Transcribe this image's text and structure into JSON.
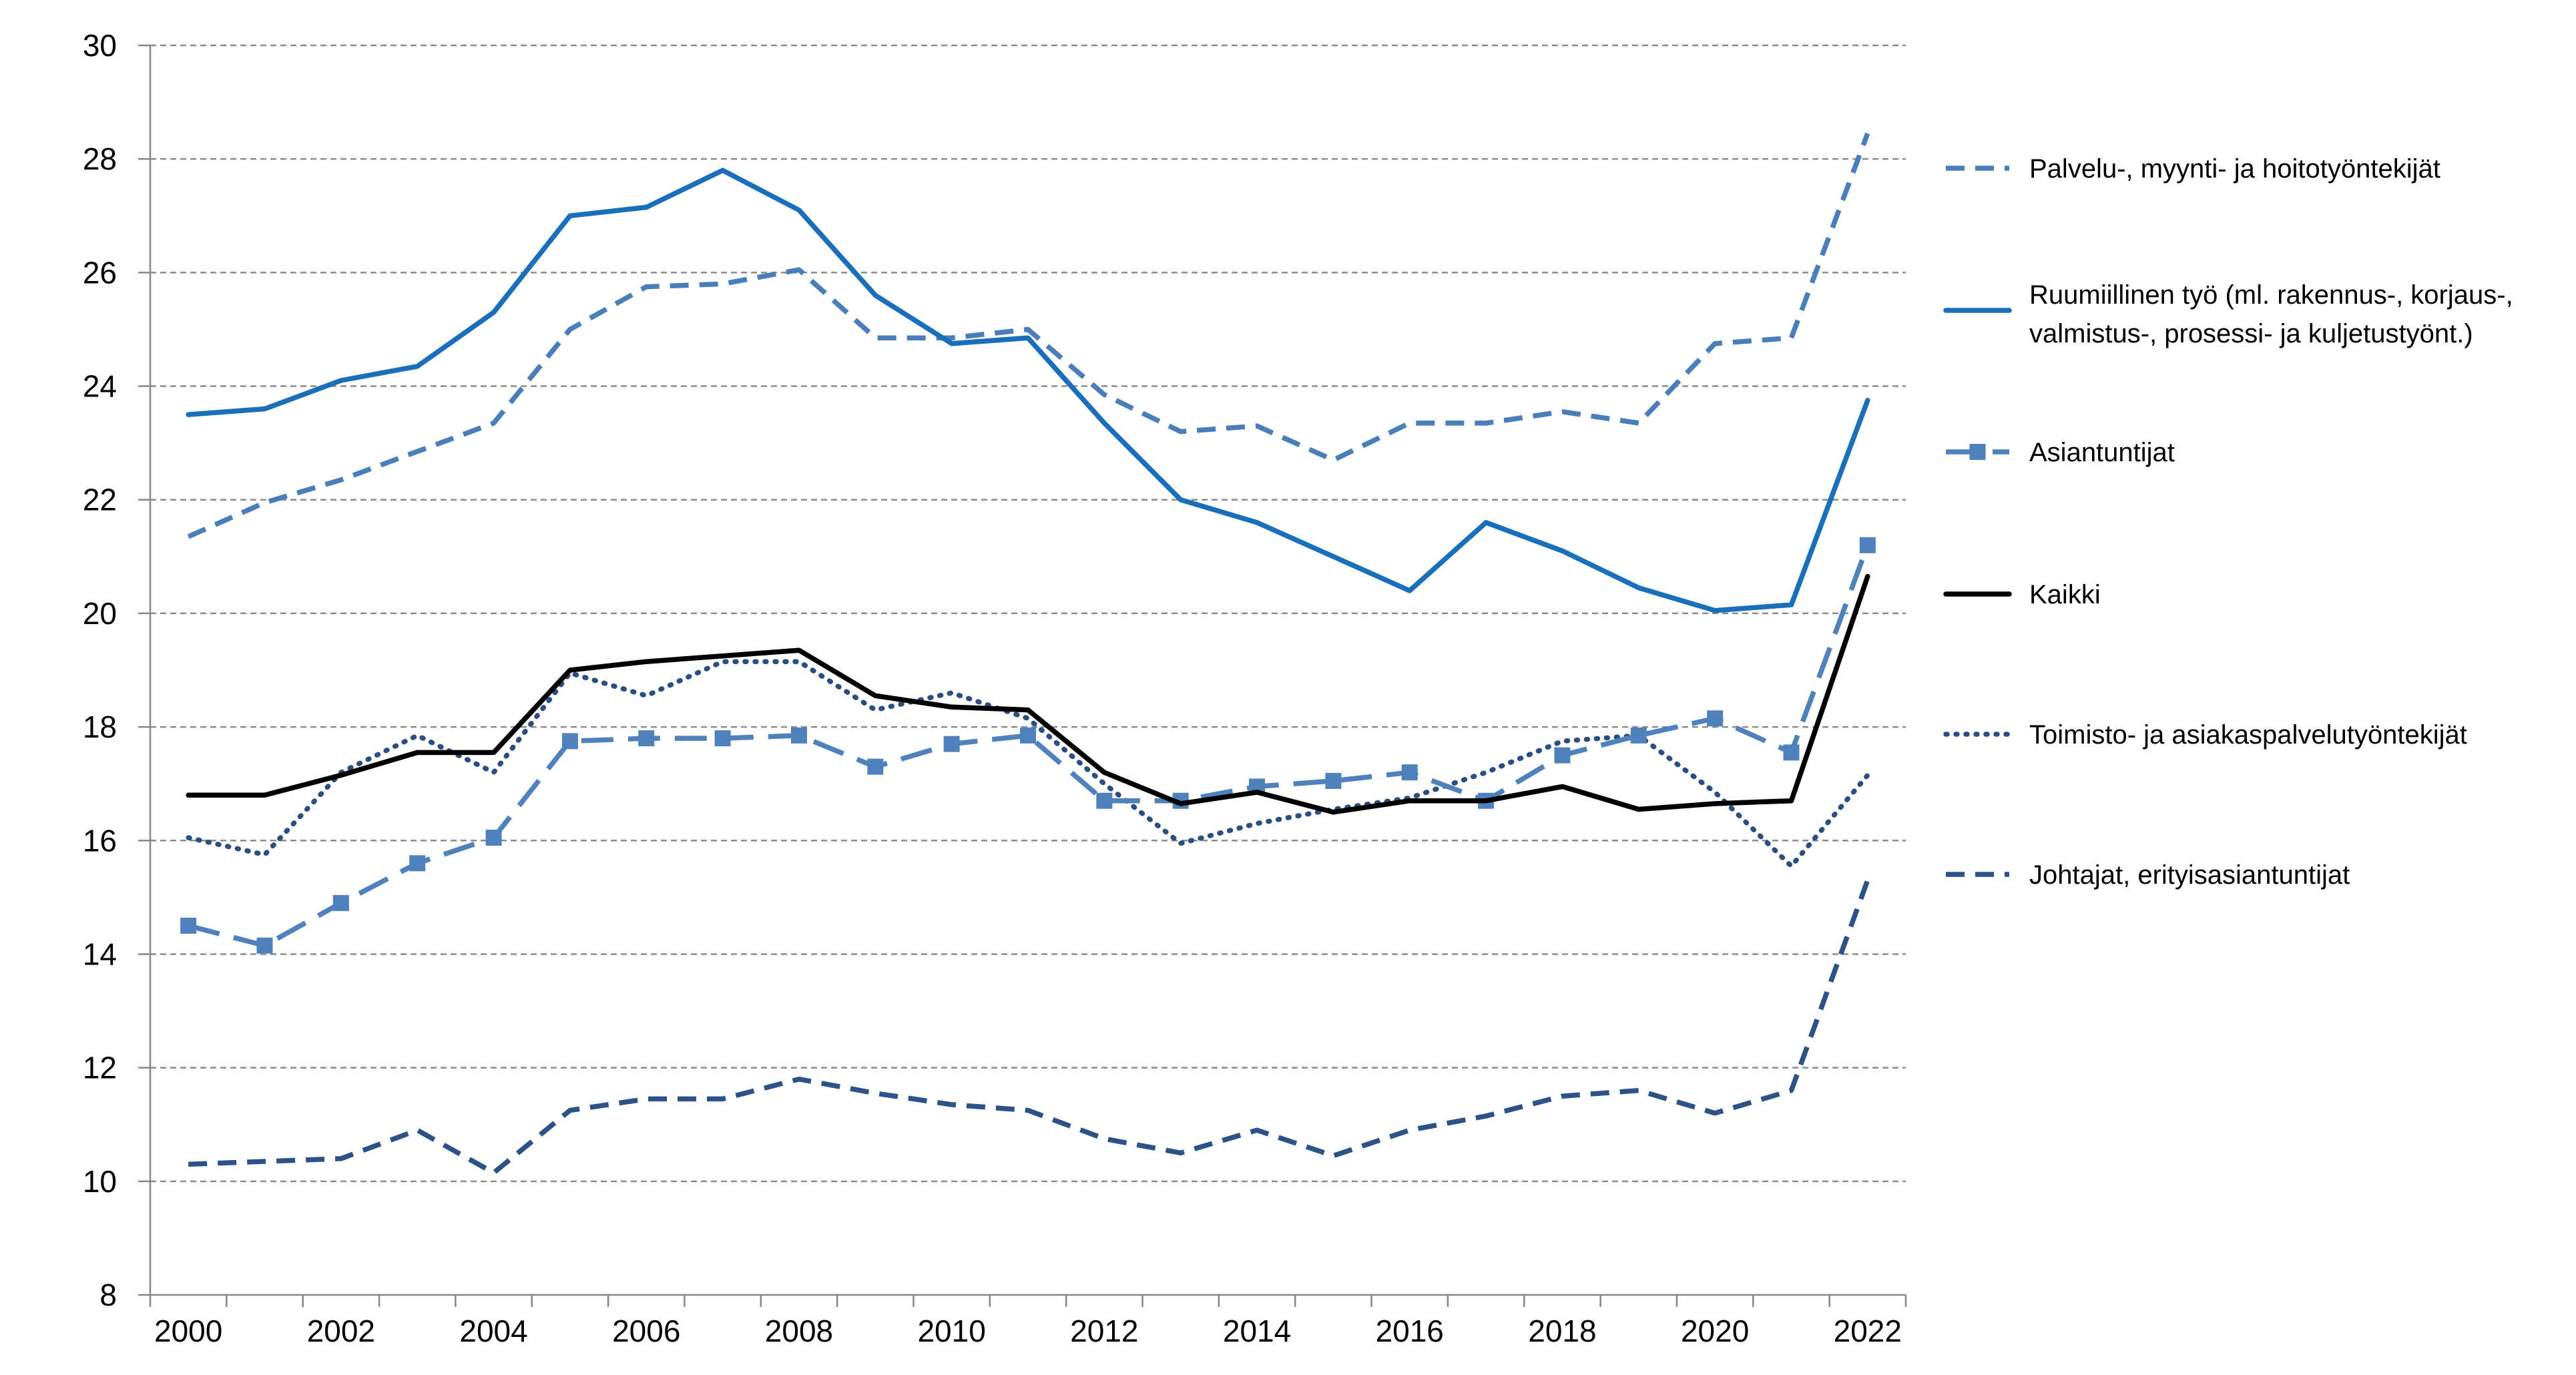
{
  "chart_data": {
    "type": "line",
    "title": "",
    "xlabel": "",
    "ylabel": "",
    "x": [
      2000,
      2001,
      2002,
      2003,
      2004,
      2005,
      2006,
      2007,
      2008,
      2009,
      2010,
      2011,
      2012,
      2013,
      2014,
      2015,
      2016,
      2017,
      2018,
      2019,
      2020,
      2021,
      2022
    ],
    "xlim": [
      1999.5,
      2022.5
    ],
    "ylim": [
      8,
      30
    ],
    "x_ticks": [
      2000,
      2002,
      2004,
      2006,
      2008,
      2010,
      2012,
      2014,
      2016,
      2018,
      2020,
      2022
    ],
    "y_ticks": [
      8,
      10,
      12,
      14,
      16,
      18,
      20,
      22,
      24,
      26,
      28,
      30
    ],
    "grid": "horizontal dashed",
    "legend_position": "right",
    "series": [
      {
        "name": "Palvelu-, myynti- ja hoitotyöntekijät",
        "style": "dashed",
        "color": "#4a7ebb",
        "legend_lines": [
          "Palvelu-, myynti- ja hoitotyöntekijät"
        ],
        "values": [
          21.35,
          21.95,
          22.35,
          22.85,
          23.35,
          25.0,
          25.75,
          25.8,
          26.05,
          24.85,
          24.85,
          25.0,
          23.85,
          23.2,
          23.3,
          22.7,
          23.35,
          23.35,
          23.55,
          23.35,
          24.75,
          24.85,
          28.45
        ]
      },
      {
        "name": "Ruumiillinen työ (ml. rakennus-, korjaus-, valmistus-, prosessi- ja kuljetustyönt.)",
        "style": "solid",
        "color": "#1a6fba",
        "legend_lines": [
          "Ruumiillinen työ (ml. rakennus-, korjaus-,",
          "valmistus-, prosessi- ja kuljetustyönt.)"
        ],
        "values": [
          23.5,
          23.6,
          24.1,
          24.35,
          25.3,
          27.0,
          27.15,
          27.8,
          27.1,
          25.6,
          24.75,
          24.85,
          23.35,
          22.0,
          21.6,
          21.0,
          20.4,
          21.6,
          21.1,
          20.45,
          20.05,
          20.15,
          23.75
        ]
      },
      {
        "name": "Asiantuntijat",
        "style": "long-dash-square-markers",
        "color": "#4f81bd",
        "legend_lines": [
          "Asiantuntijat"
        ],
        "values": [
          14.5,
          14.15,
          14.9,
          15.6,
          16.05,
          17.75,
          17.8,
          17.8,
          17.85,
          17.3,
          17.7,
          17.85,
          16.7,
          16.7,
          16.95,
          17.05,
          17.2,
          16.7,
          17.5,
          17.85,
          18.15,
          17.55,
          21.2
        ]
      },
      {
        "name": "Kaikki",
        "style": "solid",
        "color": "#000000",
        "legend_lines": [
          "Kaikki"
        ],
        "values": [
          16.8,
          16.8,
          17.15,
          17.55,
          17.55,
          19.0,
          19.15,
          19.25,
          19.35,
          18.55,
          18.35,
          18.3,
          17.2,
          16.65,
          16.85,
          16.5,
          16.7,
          16.7,
          16.95,
          16.55,
          16.65,
          16.7,
          20.65
        ]
      },
      {
        "name": "Toimisto- ja asiakaspalvelutyöntekijät",
        "style": "dotted",
        "color": "#2b4e82",
        "legend_lines": [
          "Toimisto- ja asiakaspalvelutyöntekijät"
        ],
        "values": [
          16.05,
          15.75,
          17.2,
          17.85,
          17.2,
          18.95,
          18.55,
          19.15,
          19.15,
          18.3,
          18.6,
          18.15,
          17.0,
          15.95,
          16.3,
          16.55,
          16.75,
          17.2,
          17.75,
          17.85,
          16.85,
          15.55,
          17.15
        ]
      },
      {
        "name": "Johtajat, erityisasiantuntijat",
        "style": "dashed",
        "color": "#2d5288",
        "legend_lines": [
          "Johtajat, erityisasiantuntijat"
        ],
        "values": [
          10.3,
          10.35,
          10.4,
          10.9,
          10.15,
          11.25,
          11.45,
          11.45,
          11.8,
          11.55,
          11.35,
          11.25,
          10.75,
          10.5,
          10.9,
          10.45,
          10.9,
          11.15,
          11.5,
          11.6,
          11.2,
          11.6,
          15.3
        ]
      }
    ]
  }
}
